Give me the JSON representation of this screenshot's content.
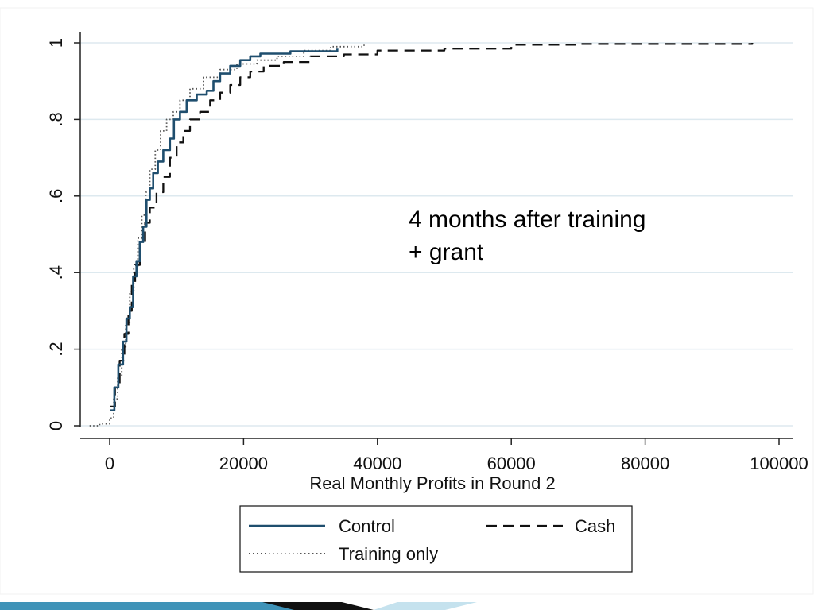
{
  "colors": {
    "control": "#1f4e6e",
    "cash": "#111111",
    "training": "#555555",
    "grid": "#dde9ef",
    "axis": "#222222",
    "footer_dark": "#111111",
    "footer_blue": "#3f93b8",
    "footer_light": "#c5e2ee"
  },
  "chart_data": {
    "type": "line",
    "title": "",
    "xlabel": "Real Monthly Profits in Round 2",
    "ylabel": "",
    "xlim": [
      -5000,
      102000
    ],
    "ylim": [
      0,
      1
    ],
    "xticks": [
      0,
      20000,
      40000,
      60000,
      80000,
      100000
    ],
    "xtick_labels": [
      "0",
      "20000",
      "40000",
      "60000",
      "80000",
      "100000"
    ],
    "yticks": [
      0,
      0.2,
      0.4,
      0.6,
      0.8,
      1
    ],
    "ytick_labels": [
      "0",
      ".2",
      ".4",
      ".6",
      ".8",
      "1"
    ],
    "grid": true,
    "legend_position": "bottom",
    "annotation": [
      "4 months after training",
      "+ grant"
    ],
    "series": [
      {
        "name": "Control",
        "style": "solid",
        "points": [
          [
            0,
            0.04
          ],
          [
            700,
            0.1
          ],
          [
            1300,
            0.16
          ],
          [
            2000,
            0.22
          ],
          [
            2500,
            0.28
          ],
          [
            3000,
            0.31
          ],
          [
            3500,
            0.39
          ],
          [
            4000,
            0.43
          ],
          [
            4500,
            0.48
          ],
          [
            5000,
            0.52
          ],
          [
            5500,
            0.59
          ],
          [
            6000,
            0.62
          ],
          [
            6500,
            0.66
          ],
          [
            7200,
            0.69
          ],
          [
            8000,
            0.72
          ],
          [
            9000,
            0.75
          ],
          [
            9600,
            0.8
          ],
          [
            10500,
            0.82
          ],
          [
            11500,
            0.85
          ],
          [
            13000,
            0.865
          ],
          [
            14500,
            0.875
          ],
          [
            15500,
            0.9
          ],
          [
            16500,
            0.92
          ],
          [
            18000,
            0.94
          ],
          [
            19500,
            0.955
          ],
          [
            21000,
            0.965
          ],
          [
            22500,
            0.972
          ],
          [
            27000,
            0.978
          ],
          [
            34000,
            0.985
          ]
        ]
      },
      {
        "name": "Cash",
        "style": "dashed",
        "points": [
          [
            0,
            0.05
          ],
          [
            800,
            0.1
          ],
          [
            1500,
            0.17
          ],
          [
            2200,
            0.24
          ],
          [
            2800,
            0.3
          ],
          [
            3300,
            0.37
          ],
          [
            3800,
            0.42
          ],
          [
            4500,
            0.48
          ],
          [
            5300,
            0.53
          ],
          [
            6000,
            0.57
          ],
          [
            7000,
            0.61
          ],
          [
            8000,
            0.65
          ],
          [
            9000,
            0.7
          ],
          [
            10000,
            0.74
          ],
          [
            11000,
            0.77
          ],
          [
            12000,
            0.8
          ],
          [
            13500,
            0.82
          ],
          [
            15000,
            0.85
          ],
          [
            16500,
            0.87
          ],
          [
            18000,
            0.89
          ],
          [
            19500,
            0.91
          ],
          [
            21000,
            0.925
          ],
          [
            23000,
            0.94
          ],
          [
            26000,
            0.95
          ],
          [
            30000,
            0.965
          ],
          [
            35000,
            0.97
          ],
          [
            40000,
            0.98
          ],
          [
            50000,
            0.985
          ],
          [
            60000,
            0.995
          ],
          [
            70000,
            0.997
          ],
          [
            96000,
            1.0
          ]
        ]
      },
      {
        "name": "Training only",
        "style": "dotted",
        "points": [
          [
            -3000,
            0.0
          ],
          [
            -1500,
            0.005
          ],
          [
            0,
            0.02
          ],
          [
            600,
            0.07
          ],
          [
            1200,
            0.13
          ],
          [
            1800,
            0.2
          ],
          [
            2400,
            0.27
          ],
          [
            3000,
            0.35
          ],
          [
            3600,
            0.41
          ],
          [
            4200,
            0.49
          ],
          [
            4800,
            0.55
          ],
          [
            5400,
            0.61
          ],
          [
            6000,
            0.67
          ],
          [
            6800,
            0.72
          ],
          [
            7600,
            0.77
          ],
          [
            8500,
            0.8
          ],
          [
            9500,
            0.82
          ],
          [
            10500,
            0.85
          ],
          [
            12000,
            0.88
          ],
          [
            14000,
            0.91
          ],
          [
            16500,
            0.93
          ],
          [
            19000,
            0.945
          ],
          [
            22000,
            0.955
          ],
          [
            25000,
            0.965
          ],
          [
            29000,
            0.98
          ],
          [
            33000,
            0.99
          ],
          [
            38000,
            0.995
          ]
        ]
      }
    ]
  }
}
